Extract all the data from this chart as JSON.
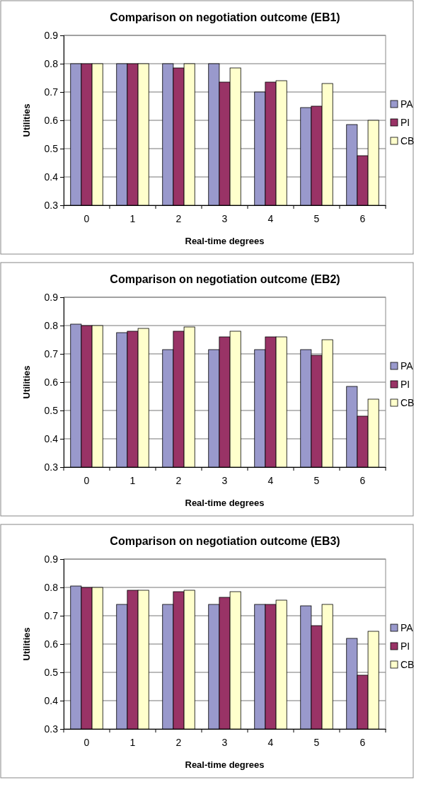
{
  "chart_data": [
    {
      "type": "bar",
      "title": "Comparison on negotiation outcome (EB1)",
      "xlabel": "Real-time degrees",
      "ylabel": "Utilities",
      "categories": [
        "0",
        "1",
        "2",
        "3",
        "4",
        "5",
        "6"
      ],
      "series": [
        {
          "name": "PA",
          "color": "#9999cc",
          "values": [
            0.8,
            0.8,
            0.8,
            0.8,
            0.7,
            0.645,
            0.585
          ]
        },
        {
          "name": "PI",
          "color": "#993366",
          "values": [
            0.8,
            0.8,
            0.785,
            0.735,
            0.735,
            0.65,
            0.475
          ]
        },
        {
          "name": "CB",
          "color": "#ffffcc",
          "values": [
            0.8,
            0.8,
            0.8,
            0.785,
            0.74,
            0.73,
            0.6
          ]
        }
      ],
      "ylim": [
        0.3,
        0.9
      ],
      "yticks": [
        0.3,
        0.4,
        0.5,
        0.6,
        0.7,
        0.8,
        0.9
      ],
      "grid": "y",
      "legend": "right"
    },
    {
      "type": "bar",
      "title": "Comparison on negotiation outcome (EB2)",
      "xlabel": "Real-time degrees",
      "ylabel": "Utilities",
      "categories": [
        "0",
        "1",
        "2",
        "3",
        "4",
        "5",
        "6"
      ],
      "series": [
        {
          "name": "PA",
          "color": "#9999cc",
          "values": [
            0.805,
            0.775,
            0.715,
            0.715,
            0.715,
            0.715,
            0.585
          ]
        },
        {
          "name": "PI",
          "color": "#993366",
          "values": [
            0.8,
            0.78,
            0.78,
            0.76,
            0.76,
            0.695,
            0.48
          ]
        },
        {
          "name": "CB",
          "color": "#ffffcc",
          "values": [
            0.8,
            0.79,
            0.795,
            0.78,
            0.76,
            0.75,
            0.54
          ]
        }
      ],
      "ylim": [
        0.3,
        0.9
      ],
      "yticks": [
        0.3,
        0.4,
        0.5,
        0.6,
        0.7,
        0.8,
        0.9
      ],
      "grid": "y",
      "legend": "right"
    },
    {
      "type": "bar",
      "title": "Comparison on negotiation outcome (EB3)",
      "xlabel": "Real-time degrees",
      "ylabel": "Utilities",
      "categories": [
        "0",
        "1",
        "2",
        "3",
        "4",
        "5",
        "6"
      ],
      "series": [
        {
          "name": "PA",
          "color": "#9999cc",
          "values": [
            0.805,
            0.74,
            0.74,
            0.74,
            0.74,
            0.735,
            0.62
          ]
        },
        {
          "name": "PI",
          "color": "#993366",
          "values": [
            0.8,
            0.79,
            0.785,
            0.765,
            0.74,
            0.665,
            0.49
          ]
        },
        {
          "name": "CB",
          "color": "#ffffcc",
          "values": [
            0.8,
            0.79,
            0.79,
            0.785,
            0.755,
            0.74,
            0.645
          ]
        }
      ],
      "ylim": [
        0.3,
        0.9
      ],
      "yticks": [
        0.3,
        0.4,
        0.5,
        0.6,
        0.7,
        0.8,
        0.9
      ],
      "grid": "y",
      "legend": "right"
    }
  ]
}
